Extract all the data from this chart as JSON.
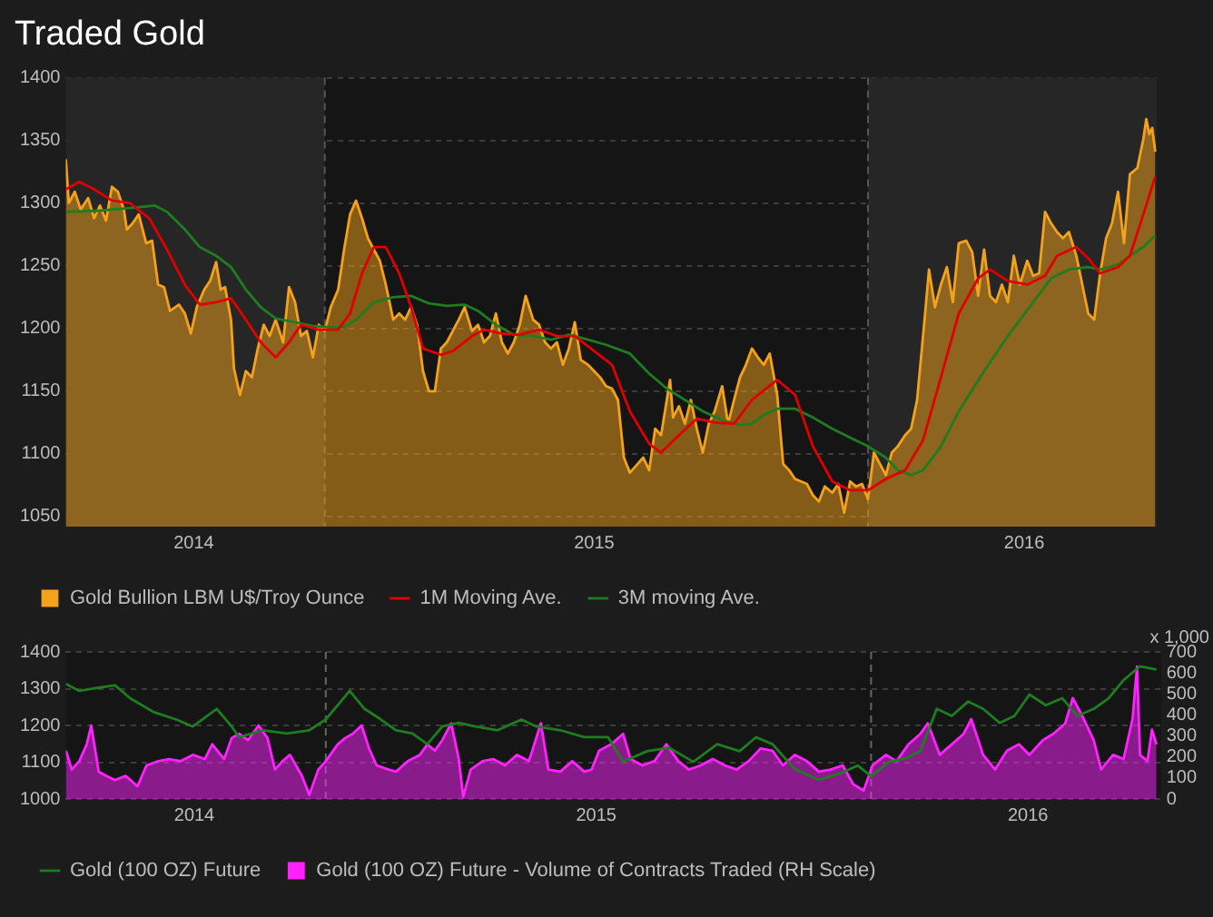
{
  "chart_data": [
    {
      "type": "line",
      "title": "Traded Gold",
      "xlim": [
        "2014-07-11",
        "2016-07-13"
      ],
      "xticks": [
        {
          "value": "2014-10-05",
          "label": "2014"
        },
        {
          "value": "2015-07-01",
          "label": "2015"
        },
        {
          "value": "2016-04-15",
          "label": "2016"
        }
      ],
      "ylim": [
        1042,
        1400
      ],
      "yticks": [
        1050,
        1100,
        1150,
        1200,
        1250,
        1300,
        1350,
        1400
      ],
      "grid": "y",
      "legend": "bottom",
      "line_style": "solid",
      "bands": [
        {
          "axis": "x",
          "from": "2014-07-11",
          "to": "2015-01-01",
          "color": "#262626"
        },
        {
          "axis": "x",
          "from": "2016-01-01",
          "to": "2016-07-13",
          "color": "#262626"
        }
      ],
      "ref_lines": [
        {
          "axis": "x",
          "value": "2015-01-01",
          "color": "#555555",
          "line_style": "dashed"
        },
        {
          "axis": "x",
          "value": "2016-01-01",
          "color": "#555555",
          "line_style": "dashed"
        }
      ],
      "series": [
        {
          "name": "Gold Bullion LBM U$/Troy Ounce",
          "type": "area",
          "color": "#f5a21b",
          "x": [
            "2014-07-11",
            "2014-07-13",
            "2014-07-17",
            "2014-07-21",
            "2014-07-26",
            "2014-07-30",
            "2014-08-03",
            "2014-08-07",
            "2014-08-11",
            "2014-08-15",
            "2014-08-19",
            "2014-08-21",
            "2014-08-25",
            "2014-08-29",
            "2014-09-03",
            "2014-09-07",
            "2014-09-11",
            "2014-09-15",
            "2014-09-19",
            "2014-09-25",
            "2014-09-29",
            "2014-10-03",
            "2014-10-07",
            "2014-10-12",
            "2014-10-16",
            "2014-10-20",
            "2014-10-23",
            "2014-10-26",
            "2014-10-30",
            "2014-11-01",
            "2014-11-05",
            "2014-11-09",
            "2014-11-13",
            "2014-11-17",
            "2014-11-21",
            "2014-11-25",
            "2014-11-29",
            "2014-12-04",
            "2014-12-08",
            "2014-12-12",
            "2014-12-16",
            "2014-12-20",
            "2014-12-24",
            "2014-12-28",
            "2015-01-01",
            "2015-01-05",
            "2015-01-10",
            "2015-01-14",
            "2015-01-18",
            "2015-01-22",
            "2015-01-26",
            "2015-01-30",
            "2015-02-03",
            "2015-02-07",
            "2015-02-11",
            "2015-02-16",
            "2015-02-20",
            "2015-02-24",
            "2015-02-28",
            "2015-03-04",
            "2015-03-08",
            "2015-03-12",
            "2015-03-16",
            "2015-03-20",
            "2015-03-24",
            "2015-03-28",
            "2015-04-01",
            "2015-04-05",
            "2015-04-10",
            "2015-04-14",
            "2015-04-18",
            "2015-04-22",
            "2015-04-26",
            "2015-04-30",
            "2015-05-04",
            "2015-05-08",
            "2015-05-12",
            "2015-05-16",
            "2015-05-21",
            "2015-05-25",
            "2015-05-29",
            "2015-06-02",
            "2015-06-06",
            "2015-06-10",
            "2015-06-14",
            "2015-06-18",
            "2015-06-22",
            "2015-06-27",
            "2015-07-01",
            "2015-07-05",
            "2015-07-09",
            "2015-07-13",
            "2015-07-17",
            "2015-07-21",
            "2015-07-25",
            "2015-08-03",
            "2015-08-07",
            "2015-08-11",
            "2015-08-15",
            "2015-08-21",
            "2015-08-23",
            "2015-08-27",
            "2015-08-31",
            "2015-09-04",
            "2015-09-08",
            "2015-09-12",
            "2015-09-16",
            "2015-09-20",
            "2015-09-25",
            "2015-09-29",
            "2015-10-03",
            "2015-10-07",
            "2015-10-11",
            "2015-10-15",
            "2015-10-19",
            "2015-10-23",
            "2015-10-27",
            "2015-11-01",
            "2015-11-05",
            "2015-11-09",
            "2015-11-13",
            "2015-11-17",
            "2015-11-21",
            "2015-11-25",
            "2015-11-29",
            "2015-12-03",
            "2015-12-08",
            "2015-12-12",
            "2015-12-16",
            "2015-12-20",
            "2015-12-24",
            "2015-12-28",
            "2016-01-01",
            "2016-01-05",
            "2016-01-09",
            "2016-01-13",
            "2016-01-17",
            "2016-01-21",
            "2016-01-26",
            "2016-01-30",
            "2016-02-03",
            "2016-02-07",
            "2016-02-11",
            "2016-02-15",
            "2016-02-19",
            "2016-02-23",
            "2016-02-27",
            "2016-03-02",
            "2016-03-07",
            "2016-03-11",
            "2016-03-15",
            "2016-03-19",
            "2016-03-23",
            "2016-03-27",
            "2016-03-31",
            "2016-04-04",
            "2016-04-08",
            "2016-04-12",
            "2016-04-17",
            "2016-04-21",
            "2016-04-25",
            "2016-04-29",
            "2016-05-03",
            "2016-05-07",
            "2016-05-11",
            "2016-05-15",
            "2016-05-20",
            "2016-05-24",
            "2016-05-28",
            "2016-06-01",
            "2016-06-05",
            "2016-06-09",
            "2016-06-13",
            "2016-06-17",
            "2016-06-21",
            "2016-06-25",
            "2016-06-30",
            "2016-07-04",
            "2016-07-06",
            "2016-07-08",
            "2016-07-10",
            "2016-07-12"
          ],
          "values": [
            1335,
            1300,
            1309,
            1295,
            1304,
            1288,
            1298,
            1286,
            1313,
            1309,
            1295,
            1279,
            1284,
            1291,
            1268,
            1270,
            1235,
            1233,
            1214,
            1219,
            1212,
            1196,
            1217,
            1231,
            1238,
            1253,
            1231,
            1233,
            1207,
            1168,
            1147,
            1166,
            1161,
            1184,
            1203,
            1194,
            1207,
            1189,
            1233,
            1221,
            1194,
            1198,
            1177,
            1203,
            1198,
            1217,
            1231,
            1263,
            1291,
            1302,
            1288,
            1272,
            1263,
            1254,
            1235,
            1207,
            1212,
            1207,
            1217,
            1203,
            1166,
            1150,
            1150,
            1184,
            1189,
            1198,
            1207,
            1217,
            1198,
            1203,
            1189,
            1194,
            1212,
            1189,
            1180,
            1189,
            1203,
            1226,
            1207,
            1203,
            1189,
            1184,
            1189,
            1171,
            1184,
            1205,
            1175,
            1171,
            1166,
            1161,
            1154,
            1152,
            1143,
            1097,
            1085,
            1097,
            1087,
            1120,
            1115,
            1159,
            1129,
            1138,
            1124,
            1143,
            1120,
            1101,
            1124,
            1134,
            1154,
            1124,
            1143,
            1161,
            1171,
            1184,
            1177,
            1171,
            1180,
            1147,
            1092,
            1087,
            1080,
            1078,
            1076,
            1067,
            1062,
            1074,
            1069,
            1076,
            1053,
            1078,
            1074,
            1076,
            1064,
            1101,
            1092,
            1083,
            1101,
            1106,
            1115,
            1120,
            1143,
            1194,
            1247,
            1217,
            1235,
            1249,
            1221,
            1268,
            1270,
            1261,
            1226,
            1263,
            1226,
            1221,
            1235,
            1221,
            1258,
            1235,
            1254,
            1242,
            1244,
            1293,
            1284,
            1277,
            1272,
            1277,
            1258,
            1235,
            1212,
            1207,
            1244,
            1272,
            1284,
            1309,
            1268,
            1323,
            1328,
            1351,
            1367,
            1355,
            1360,
            1341
          ]
        },
        {
          "name": "1M Moving Ave.",
          "type": "line",
          "color": "#e00000",
          "x": [
            "2014-07-11",
            "2014-07-20",
            "2014-07-30",
            "2014-08-11",
            "2014-08-23",
            "2014-09-05",
            "2014-09-17",
            "2014-09-29",
            "2014-10-09",
            "2014-10-20",
            "2014-10-30",
            "2014-11-09",
            "2014-11-19",
            "2014-11-29",
            "2014-12-08",
            "2014-12-16",
            "2014-12-28",
            "2015-01-10",
            "2015-01-18",
            "2015-01-26",
            "2015-02-03",
            "2015-02-11",
            "2015-02-20",
            "2015-02-28",
            "2015-03-08",
            "2015-03-20",
            "2015-03-28",
            "2015-04-10",
            "2015-04-18",
            "2015-04-30",
            "2015-05-12",
            "2015-05-25",
            "2015-06-06",
            "2015-06-18",
            "2015-07-01",
            "2015-07-13",
            "2015-07-25",
            "2015-08-07",
            "2015-08-15",
            "2015-08-27",
            "2015-09-08",
            "2015-09-20",
            "2015-10-03",
            "2015-10-15",
            "2015-11-01",
            "2015-11-13",
            "2015-11-25",
            "2015-12-08",
            "2015-12-20",
            "2016-01-01",
            "2016-01-13",
            "2016-01-26",
            "2016-02-07",
            "2016-02-19",
            "2016-03-02",
            "2016-03-15",
            "2016-03-23",
            "2016-04-04",
            "2016-04-17",
            "2016-04-29",
            "2016-05-07",
            "2016-05-20",
            "2016-05-28",
            "2016-06-05",
            "2016-06-17",
            "2016-06-25",
            "2016-07-04",
            "2016-07-12"
          ],
          "values": [
            1311,
            1317,
            1311,
            1302,
            1300,
            1288,
            1263,
            1235,
            1219,
            1221,
            1224,
            1207,
            1189,
            1177,
            1189,
            1203,
            1199,
            1199,
            1212,
            1244,
            1265,
            1265,
            1244,
            1217,
            1184,
            1179,
            1182,
            1194,
            1199,
            1196,
            1195,
            1199,
            1194,
            1194,
            1182,
            1171,
            1134,
            1108,
            1101,
            1115,
            1128,
            1125,
            1124,
            1143,
            1159,
            1147,
            1106,
            1078,
            1071,
            1071,
            1080,
            1087,
            1111,
            1161,
            1212,
            1240,
            1247,
            1238,
            1235,
            1242,
            1258,
            1265,
            1256,
            1244,
            1249,
            1258,
            1291,
            1321
          ]
        },
        {
          "name": "3M moving Ave.",
          "type": "line",
          "color": "#1e7d1e",
          "x": [
            "2014-07-11",
            "2014-08-03",
            "2014-08-23",
            "2014-09-09",
            "2014-09-17",
            "2014-09-29",
            "2014-10-09",
            "2014-10-20",
            "2014-10-30",
            "2014-11-09",
            "2014-11-19",
            "2014-11-29",
            "2014-12-12",
            "2014-12-24",
            "2015-01-05",
            "2015-01-14",
            "2015-01-22",
            "2015-02-03",
            "2015-02-16",
            "2015-02-28",
            "2015-03-12",
            "2015-03-24",
            "2015-04-05",
            "2015-04-14",
            "2015-04-26",
            "2015-05-08",
            "2015-05-21",
            "2015-06-02",
            "2015-06-14",
            "2015-06-27",
            "2015-07-09",
            "2015-07-25",
            "2015-08-07",
            "2015-08-19",
            "2015-08-31",
            "2015-09-12",
            "2015-09-25",
            "2015-10-07",
            "2015-10-15",
            "2015-10-23",
            "2015-11-01",
            "2015-11-13",
            "2015-11-25",
            "2015-12-08",
            "2015-12-20",
            "2016-01-01",
            "2016-01-13",
            "2016-01-21",
            "2016-01-30",
            "2016-02-07",
            "2016-02-19",
            "2016-03-02",
            "2016-03-19",
            "2016-04-04",
            "2016-04-21",
            "2016-05-03",
            "2016-05-15",
            "2016-05-28",
            "2016-06-05",
            "2016-06-17",
            "2016-06-25",
            "2016-07-04",
            "2016-07-12"
          ],
          "values": [
            1293,
            1294,
            1296,
            1298,
            1293,
            1279,
            1265,
            1258,
            1249,
            1231,
            1217,
            1208,
            1205,
            1202,
            1201,
            1201,
            1207,
            1221,
            1225,
            1226,
            1220,
            1218,
            1219,
            1214,
            1203,
            1195,
            1194,
            1191,
            1195,
            1191,
            1187,
            1180,
            1164,
            1152,
            1143,
            1134,
            1127,
            1123,
            1124,
            1131,
            1136,
            1136,
            1129,
            1120,
            1113,
            1106,
            1097,
            1087,
            1083,
            1087,
            1106,
            1134,
            1166,
            1194,
            1221,
            1240,
            1247,
            1249,
            1247,
            1251,
            1258,
            1265,
            1274
          ]
        }
      ]
    },
    {
      "type": "line",
      "xlim": [
        "2014-07-11",
        "2016-07-13"
      ],
      "xticks": [
        {
          "value": "2014-10-05",
          "label": "2014"
        },
        {
          "value": "2015-07-01",
          "label": "2015"
        },
        {
          "value": "2016-04-15",
          "label": "2016"
        }
      ],
      "ylim": [
        1000,
        1400
      ],
      "yticks": [
        1000,
        1100,
        1200,
        1300,
        1400
      ],
      "y2lim": [
        0,
        700
      ],
      "y2ticks": [
        0,
        100,
        200,
        300,
        400,
        500,
        600,
        700
      ],
      "y2label": "x 1,000",
      "grid": "y",
      "legend": "bottom",
      "line_style": "solid",
      "ref_lines": [
        {
          "axis": "x",
          "value": "2015-01-01",
          "color": "#666666",
          "line_style": "dashed"
        },
        {
          "axis": "x",
          "value": "2016-01-01",
          "color": "#666666",
          "line_style": "dashed"
        }
      ],
      "series": [
        {
          "name": "Gold (100 OZ) Future",
          "type": "line",
          "color": "#1e7d1e",
          "x": [
            "2014-07-11",
            "2014-07-20",
            "2014-08-02",
            "2014-08-13",
            "2014-08-23",
            "2014-09-08",
            "2014-09-23",
            "2014-10-04",
            "2014-10-20",
            "2014-10-30",
            "2014-11-04",
            "2014-11-20",
            "2014-12-06",
            "2014-12-21",
            "2015-01-01",
            "2015-01-17",
            "2015-01-27",
            "2015-02-07",
            "2015-02-17",
            "2015-02-28",
            "2015-03-10",
            "2015-03-20",
            "2015-03-31",
            "2015-04-11",
            "2015-04-26",
            "2015-05-12",
            "2015-05-22",
            "2015-06-07",
            "2015-06-23",
            "2015-07-09",
            "2015-07-19",
            "2015-08-04",
            "2015-08-19",
            "2015-09-04",
            "2015-09-20",
            "2015-10-05",
            "2015-10-16",
            "2015-10-27",
            "2015-11-11",
            "2015-11-27",
            "2015-12-13",
            "2015-12-23",
            "2016-01-01",
            "2016-01-13",
            "2016-01-24",
            "2016-02-03",
            "2016-02-14",
            "2016-02-24",
            "2016-03-06",
            "2016-03-16",
            "2016-03-27",
            "2016-04-06",
            "2016-04-16",
            "2016-04-27",
            "2016-05-08",
            "2016-05-18",
            "2016-05-29",
            "2016-06-08",
            "2016-06-18",
            "2016-06-29",
            "2016-07-10"
          ],
          "values": [
            1313,
            1294,
            1303,
            1309,
            1274,
            1236,
            1216,
            1197,
            1245,
            1197,
            1168,
            1187,
            1178,
            1187,
            1216,
            1294,
            1245,
            1216,
            1187,
            1178,
            1149,
            1197,
            1207,
            1197,
            1187,
            1216,
            1197,
            1187,
            1168,
            1168,
            1101,
            1130,
            1139,
            1101,
            1149,
            1130,
            1168,
            1149,
            1081,
            1052,
            1072,
            1091,
            1062,
            1101,
            1110,
            1130,
            1245,
            1226,
            1265,
            1245,
            1207,
            1226,
            1284,
            1255,
            1274,
            1226,
            1245,
            1274,
            1323,
            1361,
            1352
          ]
        },
        {
          "name": "Gold (100 OZ) Future - Volume of Contracts Traded (RH Scale)",
          "type": "area",
          "axis": "y2",
          "color": "#ff22ff",
          "x": [
            "2014-07-11",
            "2014-07-15",
            "2014-07-20",
            "2014-07-25",
            "2014-07-28",
            "2014-08-02",
            "2014-08-07",
            "2014-08-13",
            "2014-08-20",
            "2014-08-28",
            "2014-09-03",
            "2014-09-11",
            "2014-09-18",
            "2014-09-26",
            "2014-10-04",
            "2014-10-12",
            "2014-10-17",
            "2014-10-25",
            "2014-10-30",
            "2014-11-04",
            "2014-11-10",
            "2014-11-17",
            "2014-11-23",
            "2014-11-28",
            "2014-12-03",
            "2014-12-08",
            "2014-12-16",
            "2014-12-21",
            "2014-12-27",
            "2015-01-01",
            "2015-01-09",
            "2015-01-14",
            "2015-01-19",
            "2015-01-25",
            "2015-01-30",
            "2015-02-04",
            "2015-02-12",
            "2015-02-17",
            "2015-02-25",
            "2015-03-05",
            "2015-03-10",
            "2015-03-15",
            "2015-03-20",
            "2015-03-26",
            "2015-03-31",
            "2015-04-03",
            "2015-04-08",
            "2015-04-16",
            "2015-04-23",
            "2015-05-01",
            "2015-05-09",
            "2015-05-17",
            "2015-05-25",
            "2015-05-30",
            "2015-06-07",
            "2015-06-15",
            "2015-06-23",
            "2015-06-28",
            "2015-07-03",
            "2015-07-11",
            "2015-07-19",
            "2015-07-24",
            "2015-08-01",
            "2015-08-09",
            "2015-08-17",
            "2015-08-25",
            "2015-09-01",
            "2015-09-09",
            "2015-09-17",
            "2015-09-25",
            "2015-10-03",
            "2015-10-11",
            "2015-10-19",
            "2015-10-27",
            "2015-11-03",
            "2015-11-11",
            "2015-11-19",
            "2015-11-27",
            "2015-12-05",
            "2015-12-13",
            "2015-12-20",
            "2015-12-27",
            "2016-01-02",
            "2016-01-11",
            "2016-01-18",
            "2016-01-26",
            "2016-02-03",
            "2016-02-08",
            "2016-02-16",
            "2016-02-24",
            "2016-03-03",
            "2016-03-08",
            "2016-03-16",
            "2016-03-24",
            "2016-04-01",
            "2016-04-09",
            "2016-04-16",
            "2016-04-25",
            "2016-05-02",
            "2016-05-10",
            "2016-05-15",
            "2016-05-21",
            "2016-05-29",
            "2016-06-03",
            "2016-06-11",
            "2016-06-18",
            "2016-06-24",
            "2016-06-27",
            "2016-06-29",
            "2016-07-04",
            "2016-07-07",
            "2016-07-10"
          ],
          "values": [
            230,
            140,
            180,
            260,
            350,
            130,
            110,
            90,
            110,
            60,
            160,
            180,
            190,
            180,
            210,
            190,
            260,
            190,
            290,
            310,
            280,
            350,
            290,
            140,
            180,
            210,
            110,
            20,
            140,
            180,
            260,
            290,
            310,
            350,
            240,
            160,
            140,
            130,
            180,
            210,
            260,
            230,
            280,
            360,
            190,
            10,
            140,
            180,
            190,
            160,
            210,
            180,
            360,
            140,
            130,
            180,
            130,
            140,
            230,
            260,
            310,
            190,
            160,
            180,
            260,
            180,
            140,
            160,
            190,
            160,
            140,
            180,
            240,
            230,
            160,
            210,
            180,
            130,
            140,
            160,
            70,
            40,
            160,
            210,
            180,
            260,
            310,
            360,
            210,
            260,
            310,
            380,
            210,
            140,
            230,
            260,
            210,
            280,
            310,
            360,
            480,
            400,
            280,
            140,
            210,
            190,
            380,
            630,
            210,
            180,
            330,
            260
          ]
        }
      ]
    }
  ]
}
